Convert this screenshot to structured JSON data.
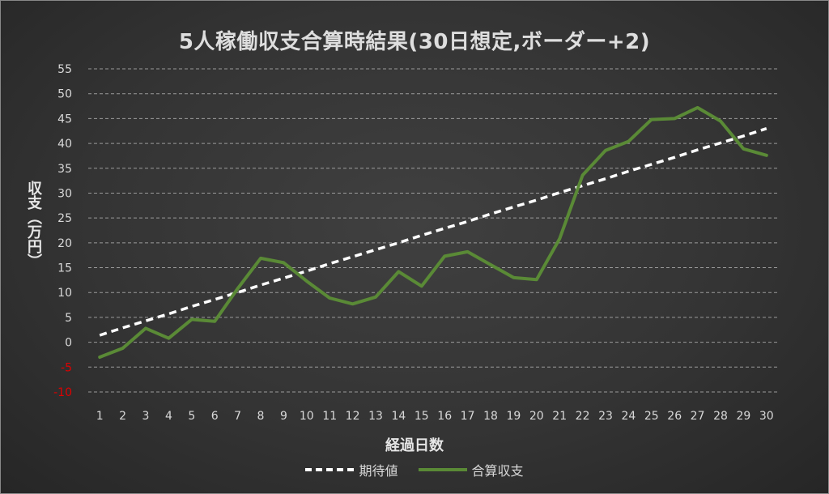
{
  "chart_data": {
    "type": "line",
    "title": "5人稼働収支合算時結果(30日想定,ボーダー+2)",
    "xlabel": "経過日数",
    "ylabel": "収支（万円）",
    "categories": [
      1,
      2,
      3,
      4,
      5,
      6,
      7,
      8,
      9,
      10,
      11,
      12,
      13,
      14,
      15,
      16,
      17,
      18,
      19,
      20,
      21,
      22,
      23,
      24,
      25,
      26,
      27,
      28,
      29,
      30
    ],
    "ylim": [
      -10,
      55
    ],
    "yticks": [
      55,
      50,
      45,
      40,
      35,
      30,
      25,
      20,
      15,
      10,
      5,
      0,
      -5,
      -10
    ],
    "negative_tick_color": "#e00000",
    "grid": true,
    "legend_position": "bottom",
    "series": [
      {
        "name": "期待値",
        "color": "#ffffff",
        "style": "dashed",
        "values": [
          1.4,
          2.9,
          4.3,
          5.7,
          7.2,
          8.6,
          10.0,
          11.5,
          12.9,
          14.3,
          15.8,
          17.2,
          18.6,
          20.0,
          21.5,
          22.9,
          24.3,
          25.8,
          27.2,
          28.6,
          30.1,
          31.5,
          32.9,
          34.4,
          35.8,
          37.2,
          38.7,
          40.1,
          41.5,
          43.0
        ]
      },
      {
        "name": "合算収支",
        "color": "#5a8a36",
        "style": "solid",
        "values": [
          -3.0,
          -1.2,
          2.8,
          0.8,
          4.6,
          4.2,
          10.8,
          16.9,
          16.0,
          12.3,
          8.9,
          7.7,
          9.1,
          14.2,
          11.3,
          17.3,
          18.2,
          15.6,
          13.0,
          12.6,
          20.8,
          33.6,
          38.6,
          40.4,
          44.8,
          45.0,
          47.2,
          44.5,
          38.9,
          37.6
        ]
      }
    ]
  }
}
